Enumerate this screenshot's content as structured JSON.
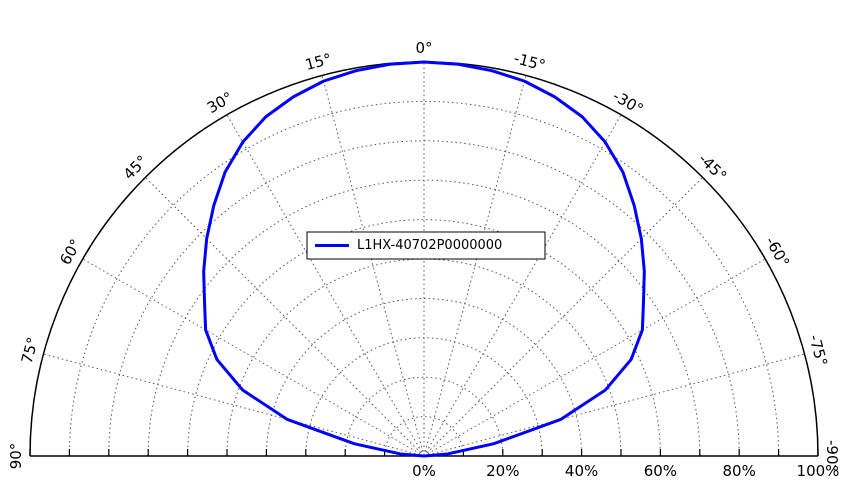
{
  "chart_data": {
    "type": "polar",
    "angle_unit": "degrees",
    "angle_range": [
      90,
      -90
    ],
    "radius_range": [
      0,
      100
    ],
    "radius_unit": "%",
    "angle_tick_labels": [
      "90°",
      "75°",
      "60°",
      "45°",
      "30°",
      "15°",
      "0°",
      "-15°",
      "-30°",
      "-45°",
      "-60°",
      "-75°",
      "-90°"
    ],
    "radial_tick_labels": [
      "0%",
      "20%",
      "40%",
      "60%",
      "80%",
      "100%"
    ],
    "grid": true,
    "legend_position": "center",
    "series": [
      {
        "name": "L1HX-40702P0000000",
        "color": "#0000ff",
        "angles": [
          -90,
          -85,
          -80,
          -75,
          -70,
          -65,
          -60,
          -55,
          -50,
          -45,
          -40,
          -35,
          -30,
          -25,
          -20,
          -15,
          -10,
          -5,
          0,
          5,
          10,
          15,
          20,
          25,
          30,
          35,
          40,
          45,
          50,
          55,
          60,
          65,
          70,
          75,
          80,
          85,
          90
        ],
        "values": [
          0,
          6,
          18,
          36,
          49,
          58,
          64,
          68,
          73,
          78,
          83,
          88,
          92,
          95,
          97,
          98.5,
          99.3,
          99.8,
          100,
          99.8,
          99.3,
          98.5,
          97,
          95,
          92,
          88,
          83,
          78,
          73,
          68,
          64,
          58,
          49,
          36,
          18,
          6,
          0
        ]
      }
    ]
  }
}
